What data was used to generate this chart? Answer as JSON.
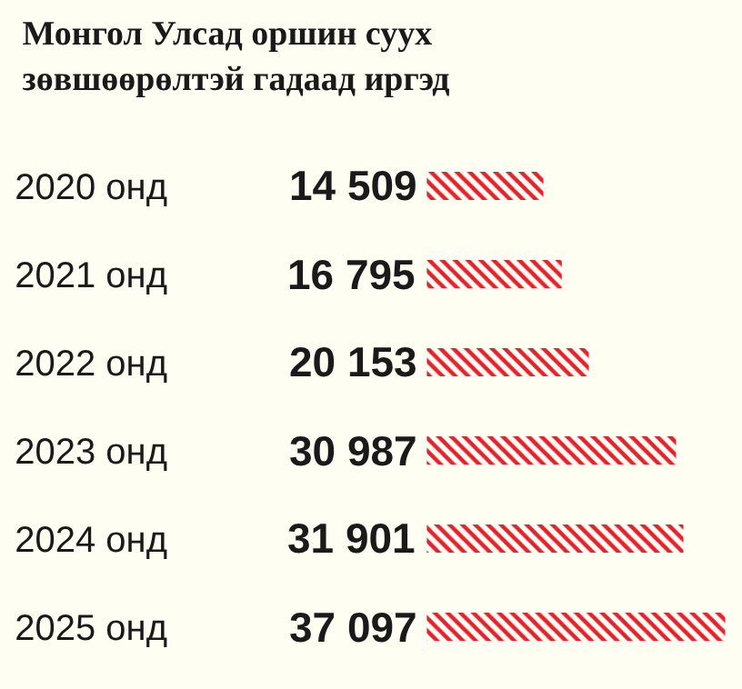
{
  "chart_data": {
    "type": "bar",
    "orientation": "horizontal",
    "title": "Монгол Улсад оршин суух\nзөвшөөрөлтэй гадаад иргэд",
    "categories": [
      "2020 онд",
      "2021 онд",
      "2022 онд",
      "2023 онд",
      "2024 онд",
      "2025 онд"
    ],
    "values": [
      14509,
      16795,
      20153,
      30987,
      31901,
      37097
    ],
    "value_labels": [
      "14 509",
      "16 795",
      "20 153",
      "30 987",
      "31 901",
      "37 097"
    ],
    "color": "#e8202e",
    "grid": false,
    "legend": false
  }
}
